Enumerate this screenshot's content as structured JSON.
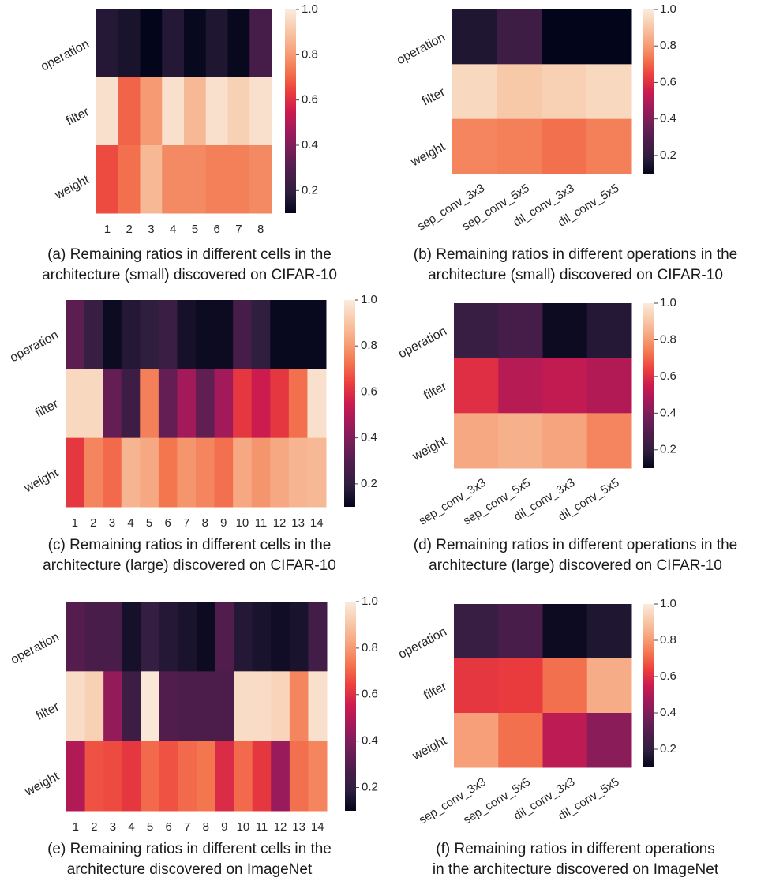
{
  "colormap": {
    "name": "rocket",
    "stops": [
      "#03051a",
      "#2d1e3e",
      "#4c1d4b",
      "#701f57",
      "#9e1a5b",
      "#cb1b4f",
      "#ed3f3c",
      "#f3764f",
      "#f6a47d",
      "#f8c9a9",
      "#faebdd"
    ]
  },
  "colorbar_ticks": [
    "0.2",
    "0.4",
    "0.6",
    "0.8",
    "1.0"
  ],
  "chart_data": [
    {
      "id": "a",
      "type": "heatmap",
      "rows": [
        "operation",
        "filter",
        "weight"
      ],
      "columns": [
        "1",
        "2",
        "3",
        "4",
        "5",
        "6",
        "7",
        "8"
      ],
      "values": [
        [
          0.17,
          0.15,
          0.1,
          0.17,
          0.11,
          0.16,
          0.11,
          0.26
        ],
        [
          0.97,
          0.7,
          0.8,
          0.97,
          0.87,
          0.97,
          0.93,
          0.97
        ],
        [
          0.66,
          0.72,
          0.87,
          0.77,
          0.77,
          0.75,
          0.75,
          0.77
        ]
      ],
      "vmin": 0.1,
      "vmax": 1.0,
      "caption": [
        "(a) Remaining ratios in different cells in the",
        "architecture (small) discovered on CIFAR-10"
      ]
    },
    {
      "id": "b",
      "type": "heatmap",
      "rows": [
        "operation",
        "filter",
        "weight"
      ],
      "columns": [
        "sep_conv_3x3",
        "sep_conv_5x5",
        "dil_conv_3x3",
        "dil_conv_5x5"
      ],
      "values": [
        [
          0.16,
          0.24,
          0.1,
          0.1
        ],
        [
          0.95,
          0.91,
          0.93,
          0.95
        ],
        [
          0.76,
          0.75,
          0.72,
          0.75
        ]
      ],
      "vmin": 0.1,
      "vmax": 1.0,
      "caption": [
        "(b) Remaining ratios in different operations in the",
        "architecture (small) discovered on CIFAR-10"
      ]
    },
    {
      "id": "c",
      "type": "heatmap",
      "rows": [
        "operation",
        "filter",
        "weight"
      ],
      "columns": [
        "1",
        "2",
        "3",
        "4",
        "5",
        "6",
        "7",
        "8",
        "9",
        "10",
        "11",
        "12",
        "13",
        "14"
      ],
      "values": [
        [
          0.32,
          0.22,
          0.12,
          0.17,
          0.2,
          0.23,
          0.14,
          0.12,
          0.12,
          0.26,
          0.2,
          0.11,
          0.11,
          0.11
        ],
        [
          0.95,
          0.95,
          0.34,
          0.24,
          0.75,
          0.34,
          0.47,
          0.33,
          0.47,
          0.62,
          0.55,
          0.62,
          0.72,
          0.97
        ],
        [
          0.62,
          0.76,
          0.71,
          0.86,
          0.83,
          0.73,
          0.79,
          0.76,
          0.72,
          0.83,
          0.79,
          0.83,
          0.86,
          0.87
        ]
      ],
      "vmin": 0.1,
      "vmax": 1.0,
      "caption": [
        "(c) Remaining ratios in different cells in the",
        "architecture (large) discovered on CIFAR-10"
      ]
    },
    {
      "id": "d",
      "type": "heatmap",
      "rows": [
        "operation",
        "filter",
        "weight"
      ],
      "columns": [
        "sep_conv_3x3",
        "sep_conv_5x5",
        "dil_conv_3x3",
        "dil_conv_5x5"
      ],
      "values": [
        [
          0.22,
          0.26,
          0.12,
          0.17
        ],
        [
          0.6,
          0.51,
          0.53,
          0.5
        ],
        [
          0.83,
          0.85,
          0.82,
          0.76
        ]
      ],
      "vmin": 0.1,
      "vmax": 1.0,
      "caption": [
        "(d) Remaining ratios in different operations in the",
        "architecture (large) discovered on CIFAR-10"
      ]
    },
    {
      "id": "e",
      "type": "heatmap",
      "rows": [
        "operation",
        "filter",
        "weight"
      ],
      "columns": [
        "1",
        "2",
        "3",
        "4",
        "5",
        "6",
        "7",
        "8",
        "9",
        "10",
        "11",
        "12",
        "13",
        "14"
      ],
      "values": [
        [
          0.3,
          0.27,
          0.27,
          0.14,
          0.21,
          0.17,
          0.15,
          0.12,
          0.29,
          0.17,
          0.15,
          0.13,
          0.15,
          0.25
        ],
        [
          0.96,
          0.93,
          0.44,
          0.24,
          0.99,
          0.29,
          0.28,
          0.28,
          0.28,
          0.96,
          0.96,
          0.94,
          0.76,
          0.97
        ],
        [
          0.5,
          0.67,
          0.66,
          0.62,
          0.71,
          0.67,
          0.71,
          0.73,
          0.59,
          0.71,
          0.62,
          0.45,
          0.72,
          0.76
        ]
      ],
      "vmin": 0.1,
      "vmax": 1.0,
      "caption": [
        "(e) Remaining ratios in different cells in the",
        "architecture discovered on ImageNet"
      ]
    },
    {
      "id": "f",
      "type": "heatmap",
      "rows": [
        "operation",
        "filter",
        "weight"
      ],
      "columns": [
        "sep_conv_3x3",
        "sep_conv_5x5",
        "dil_conv_3x3",
        "dil_conv_5x5"
      ],
      "values": [
        [
          0.22,
          0.27,
          0.12,
          0.16
        ],
        [
          0.62,
          0.63,
          0.72,
          0.84
        ],
        [
          0.81,
          0.72,
          0.52,
          0.42
        ]
      ],
      "vmin": 0.1,
      "vmax": 1.0,
      "caption": [
        "(f) Remaining ratios in different operations",
        "in the architecture discovered on ImageNet"
      ]
    }
  ]
}
